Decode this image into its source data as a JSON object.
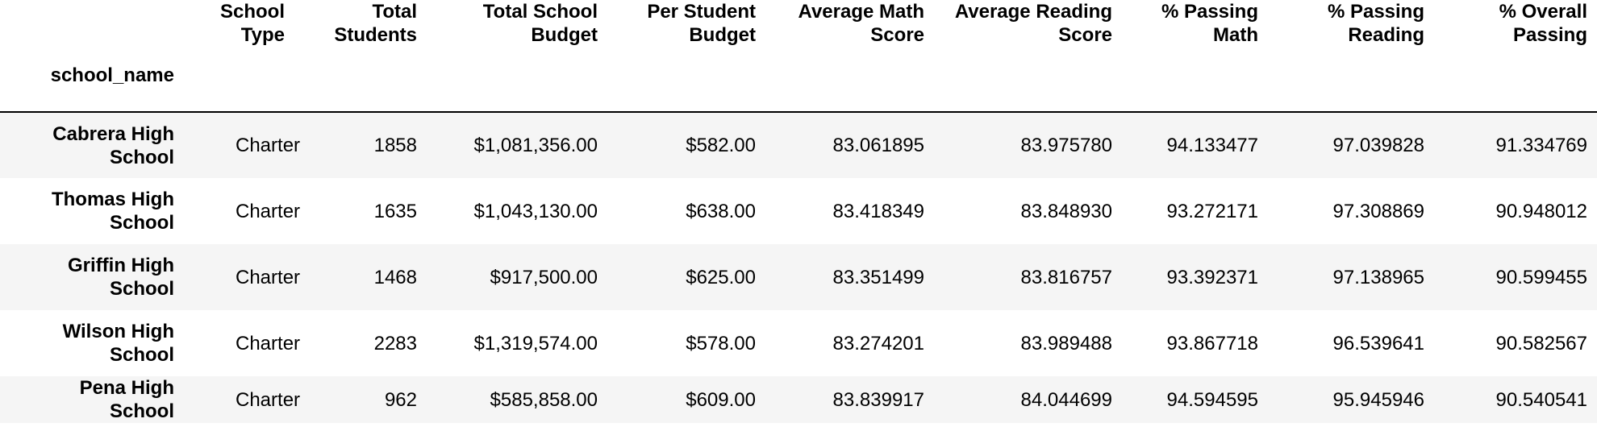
{
  "table": {
    "columns": [
      "School Type",
      "Total Students",
      "Total School Budget",
      "Per Student Budget",
      "Average Math Score",
      "Average Reading Score",
      "% Passing Math",
      "% Passing Reading",
      "% Overall Passing"
    ],
    "index_name": "school_name",
    "rows": [
      {
        "school_name": "Cabrera High School",
        "values": [
          "Charter",
          "1858",
          "$1,081,356.00",
          "$582.00",
          "83.061895",
          "83.975780",
          "94.133477",
          "97.039828",
          "91.334769"
        ]
      },
      {
        "school_name": "Thomas High School",
        "values": [
          "Charter",
          "1635",
          "$1,043,130.00",
          "$638.00",
          "83.418349",
          "83.848930",
          "93.272171",
          "97.308869",
          "90.948012"
        ]
      },
      {
        "school_name": "Griffin High School",
        "values": [
          "Charter",
          "1468",
          "$917,500.00",
          "$625.00",
          "83.351499",
          "83.816757",
          "93.392371",
          "97.138965",
          "90.599455"
        ]
      },
      {
        "school_name": "Wilson High School",
        "values": [
          "Charter",
          "2283",
          "$1,319,574.00",
          "$578.00",
          "83.274201",
          "83.989488",
          "93.867718",
          "96.539641",
          "90.582567"
        ]
      },
      {
        "school_name": "Pena High School",
        "values": [
          "Charter",
          "962",
          "$585,858.00",
          "$609.00",
          "83.839917",
          "84.044699",
          "94.594595",
          "95.945946",
          "90.540541"
        ]
      }
    ]
  }
}
